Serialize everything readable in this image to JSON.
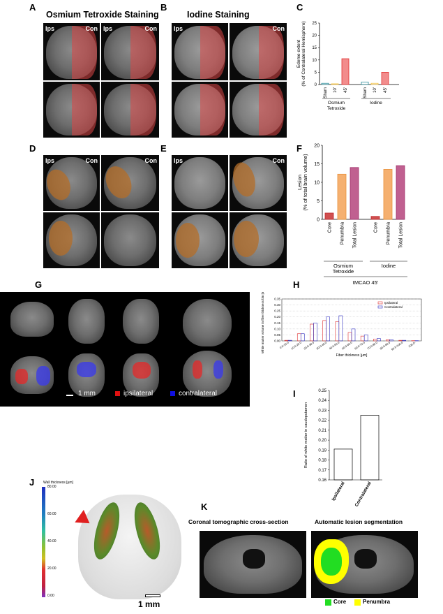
{
  "panels": {
    "A": {
      "letter": "A",
      "title": "Osmium Tetroxide Staining",
      "ips": "Ips",
      "con": "Con"
    },
    "B": {
      "letter": "B",
      "title": "Iodine Staining",
      "ips": "Ips",
      "con": "Con"
    },
    "C": {
      "letter": "C"
    },
    "D": {
      "letter": "D",
      "ips": "Ips",
      "con": "Con"
    },
    "E": {
      "letter": "E",
      "ips": "Ips",
      "con": "Con"
    },
    "F": {
      "letter": "F"
    },
    "G": {
      "letter": "G",
      "scale": "1 mm",
      "ipsilateral": "ipsilateral",
      "contralateral": "contralateral"
    },
    "H": {
      "letter": "H"
    },
    "I": {
      "letter": "I"
    },
    "J": {
      "letter": "J",
      "colorbar_title": "Wall thickness [µm]",
      "scale": "1 mm",
      "colorbar_ticks": [
        "80.00",
        "60.00",
        "40.00",
        "20.00",
        "0.00"
      ]
    },
    "K": {
      "letter": "K",
      "left_title": "Coronal tomographic cross-section",
      "right_title": "Automatic lesion segmentation",
      "core": "Core",
      "penumbra": "Penumbra"
    }
  },
  "colors": {
    "red_overlay": "#e05050",
    "osmium": "#f4a460",
    "iodine_yellow": "#f5c242",
    "sham_teal": "#2a8c9a",
    "core_red": "#c0292c",
    "penumbra_orange": "#e8913a",
    "total_purple": "#a0306a",
    "ips_red": "#e03030",
    "con_blue": "#3030c0",
    "seg_green": "#22dd22",
    "seg_yellow": "#ffff00"
  },
  "chart_data": [
    {
      "id": "C",
      "type": "bar",
      "ylabel": "Edeme extent (% of Contralateral Hemisphere)",
      "ylim": [
        0,
        25
      ],
      "yticks": [
        "0",
        "5",
        "10",
        "15",
        "20",
        "25"
      ],
      "groups": [
        "Osmium Tetroxide",
        "Iodine"
      ],
      "categories": [
        "Sham",
        "10'",
        "45'",
        "Sham",
        "10'",
        "45'"
      ],
      "values": [
        0.5,
        0.3,
        10.5,
        1.0,
        0.5,
        5.0
      ]
    },
    {
      "id": "F",
      "type": "bar",
      "ylabel": "Lesion (% of total brain volume)",
      "ylim": [
        0,
        20
      ],
      "yticks": [
        "0",
        "5",
        "10",
        "15",
        "20"
      ],
      "groups": [
        "Osmium Tetroxide",
        "Iodine"
      ],
      "group_caption": "tMCAO 45'",
      "categories": [
        "Core",
        "Penumbra",
        "Total Lesion",
        "Core",
        "Penumbra",
        "Total Lesion"
      ],
      "values": [
        1.7,
        12.2,
        14.0,
        0.8,
        13.5,
        14.5
      ]
    },
    {
      "id": "H",
      "type": "bar",
      "ylabel": "White matter volume in fiber thickness bin [mm³]",
      "xlabel": "Fiber thickness [µm]",
      "ylim": [
        0,
        0.35
      ],
      "yticks": [
        "0.00",
        "0.05",
        "0.10",
        "0.15",
        "0.20",
        "0.25",
        "0.30",
        "0.35"
      ],
      "categories": [
        "0.0-10.0",
        "10.0-20.0",
        "20.0-30.0",
        "30.0-40.0",
        "40.0-50.0",
        "50.0-60.0",
        "60.0-70.0",
        "70.0-80.0",
        "80.0-90.0",
        "90.0-100.0",
        "100.0-"
      ],
      "series": [
        {
          "name": "Ipsilateral",
          "values": [
            0.005,
            0.06,
            0.14,
            0.17,
            0.16,
            0.07,
            0.04,
            0.015,
            0.01,
            0.005,
            0.002
          ]
        },
        {
          "name": "Contralateral",
          "values": [
            0.005,
            0.06,
            0.15,
            0.2,
            0.21,
            0.1,
            0.05,
            0.02,
            0.01,
            0.005,
            0.002
          ]
        }
      ],
      "legend": "top-right"
    },
    {
      "id": "I",
      "type": "bar",
      "ylabel": "Ratio of white matter in caudoputamen",
      "ylim": [
        0.16,
        0.25
      ],
      "yticks": [
        "0.16",
        "0.17",
        "0.18",
        "0.19",
        "0.20",
        "0.21",
        "0.22",
        "0.23",
        "0.24",
        "0.25"
      ],
      "categories": [
        "Ipsilateral",
        "Contralateral"
      ],
      "values": [
        0.191,
        0.225
      ]
    }
  ]
}
